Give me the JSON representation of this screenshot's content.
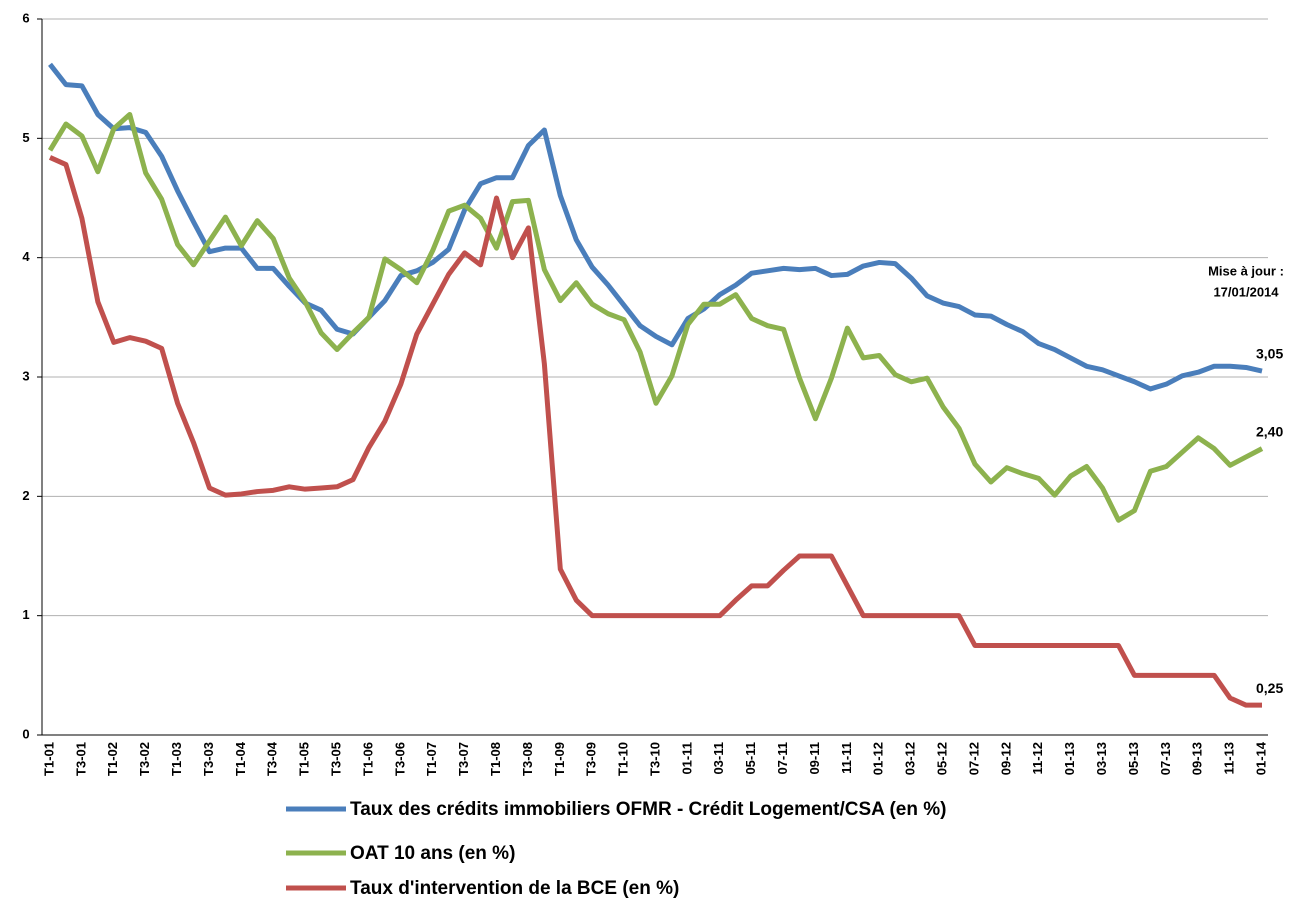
{
  "chart_data": {
    "type": "line",
    "categories": [
      "T1-01",
      null,
      "T3-01",
      null,
      "T1-02",
      null,
      "T3-02",
      null,
      "T1-03",
      null,
      "T3-03",
      null,
      "T1-04",
      null,
      "T3-04",
      null,
      "T1-05",
      null,
      "T3-05",
      null,
      "T1-06",
      null,
      "T3-06",
      null,
      "T1-07",
      null,
      "T3-07",
      null,
      "T1-08",
      null,
      "T3-08",
      null,
      "T1-09",
      null,
      "T3-09",
      null,
      "T1-10",
      null,
      "T3-10",
      null,
      "01-11",
      null,
      "03-11",
      null,
      "05-11",
      null,
      "07-11",
      null,
      "09-11",
      null,
      "11-11",
      null,
      "01-12",
      null,
      "03-12",
      null,
      "05-12",
      null,
      "07-12",
      null,
      "09-12",
      null,
      "11-12",
      null,
      "01-13",
      null,
      "03-13",
      null,
      "05-13",
      null,
      "07-13",
      null,
      "09-13",
      null,
      "11-13",
      null,
      "01-14"
    ],
    "series": [
      {
        "name": "Taux des crédits immobiliers OFMR - Crédit Logement/CSA (en %)",
        "color": "#4a7ebb",
        "values": [
          5.62,
          5.45,
          5.44,
          5.2,
          5.08,
          5.09,
          5.05,
          4.85,
          4.56,
          4.3,
          4.05,
          4.08,
          4.08,
          3.91,
          3.91,
          3.76,
          3.62,
          3.56,
          3.4,
          3.36,
          3.5,
          3.64,
          3.85,
          3.89,
          3.96,
          4.07,
          4.4,
          4.62,
          4.67,
          4.67,
          4.94,
          5.07,
          4.52,
          4.15,
          3.92,
          3.77,
          3.6,
          3.43,
          3.34,
          3.27,
          3.49,
          3.57,
          3.69,
          3.77,
          3.87,
          3.89,
          3.91,
          3.9,
          3.91,
          3.85,
          3.86,
          3.93,
          3.96,
          3.95,
          3.83,
          3.68,
          3.62,
          3.59,
          3.52,
          3.51,
          3.44,
          3.38,
          3.28,
          3.23,
          3.16,
          3.09,
          3.06,
          3.01,
          2.96,
          2.9,
          2.94,
          3.01,
          3.04,
          3.09,
          3.09,
          3.08,
          3.05
        ],
        "value_labels": [
          null,
          null,
          null,
          null,
          null,
          null,
          null,
          null,
          null,
          null,
          null,
          null,
          null,
          null,
          null,
          null,
          null,
          null,
          null,
          null,
          null,
          null,
          null,
          null,
          null,
          null,
          null,
          null,
          null,
          null,
          null,
          null,
          null,
          null,
          null,
          null,
          null,
          null,
          null,
          null,
          null,
          null,
          null,
          null,
          null,
          null,
          null,
          null,
          null,
          null,
          null,
          null,
          null,
          null,
          null,
          null,
          null,
          null,
          null,
          null,
          null,
          null,
          null,
          null,
          null,
          null,
          null,
          null,
          null,
          null,
          null,
          null,
          null,
          null,
          null,
          null,
          "3,05"
        ]
      },
      {
        "name": "OAT 10 ans (en %)",
        "color": "#8db24e",
        "values": [
          4.9,
          5.12,
          5.02,
          4.72,
          5.08,
          5.2,
          4.71,
          4.49,
          4.11,
          3.94,
          4.14,
          4.34,
          4.1,
          4.31,
          4.16,
          3.83,
          3.63,
          3.37,
          3.23,
          3.37,
          3.5,
          3.99,
          3.9,
          3.79,
          4.06,
          4.39,
          4.44,
          4.33,
          4.08,
          4.47,
          4.48,
          3.9,
          3.64,
          3.79,
          3.61,
          3.53,
          3.48,
          3.21,
          2.78,
          3.01,
          3.44,
          3.61,
          3.61,
          3.69,
          3.49,
          3.43,
          3.4,
          2.99,
          2.65,
          2.99,
          3.41,
          3.16,
          3.18,
          3.02,
          2.96,
          2.99,
          2.75,
          2.57,
          2.27,
          2.12,
          2.24,
          2.19,
          2.15,
          2.01,
          2.17,
          2.25,
          2.07,
          1.8,
          1.88,
          2.21,
          2.25,
          2.37,
          2.49,
          2.4,
          2.26,
          2.33,
          2.4
        ],
        "value_labels": [
          null,
          null,
          null,
          null,
          null,
          null,
          null,
          null,
          null,
          null,
          null,
          null,
          null,
          null,
          null,
          null,
          null,
          null,
          null,
          null,
          null,
          null,
          null,
          null,
          null,
          null,
          null,
          null,
          null,
          null,
          null,
          null,
          null,
          null,
          null,
          null,
          null,
          null,
          null,
          null,
          null,
          null,
          null,
          null,
          null,
          null,
          null,
          null,
          null,
          null,
          null,
          null,
          null,
          null,
          null,
          null,
          null,
          null,
          null,
          null,
          null,
          null,
          null,
          null,
          null,
          null,
          null,
          null,
          null,
          null,
          null,
          null,
          null,
          null,
          null,
          null,
          "2,40"
        ]
      },
      {
        "name": "Taux d'intervention de la BCE (en %)",
        "color": "#c0504d",
        "values": [
          4.84,
          4.78,
          4.33,
          3.63,
          3.29,
          3.33,
          3.3,
          3.24,
          2.78,
          2.45,
          2.07,
          2.01,
          2.02,
          2.04,
          2.05,
          2.08,
          2.06,
          2.07,
          2.08,
          2.14,
          2.41,
          2.63,
          2.94,
          3.36,
          3.61,
          3.86,
          4.04,
          3.94,
          4.5,
          4.0,
          4.25,
          3.11,
          1.39,
          1.13,
          1.0,
          1.0,
          1.0,
          1.0,
          1.0,
          1.0,
          1.0,
          1.0,
          1.0,
          1.13,
          1.25,
          1.25,
          1.38,
          1.5,
          1.5,
          1.5,
          1.25,
          1.0,
          1.0,
          1.0,
          1.0,
          1.0,
          1.0,
          1.0,
          0.75,
          0.75,
          0.75,
          0.75,
          0.75,
          0.75,
          0.75,
          0.75,
          0.75,
          0.75,
          0.5,
          0.5,
          0.5,
          0.5,
          0.5,
          0.5,
          0.31,
          0.25,
          0.25
        ],
        "value_labels": [
          null,
          null,
          null,
          null,
          null,
          null,
          null,
          null,
          null,
          null,
          null,
          null,
          null,
          null,
          null,
          null,
          null,
          null,
          null,
          null,
          null,
          null,
          null,
          null,
          null,
          null,
          null,
          null,
          null,
          null,
          null,
          null,
          null,
          null,
          null,
          null,
          null,
          null,
          null,
          null,
          null,
          null,
          null,
          null,
          null,
          null,
          null,
          null,
          null,
          null,
          null,
          null,
          null,
          null,
          null,
          null,
          null,
          null,
          null,
          null,
          null,
          null,
          null,
          null,
          null,
          null,
          null,
          null,
          null,
          null,
          null,
          null,
          null,
          null,
          null,
          null,
          "0,25"
        ]
      }
    ],
    "annotation": [
      "Mise à jour :",
      "17/01/2014"
    ],
    "ylim": [
      0,
      6
    ],
    "yticks": [
      0,
      1,
      2,
      3,
      4,
      5,
      6
    ],
    "grid": true
  }
}
